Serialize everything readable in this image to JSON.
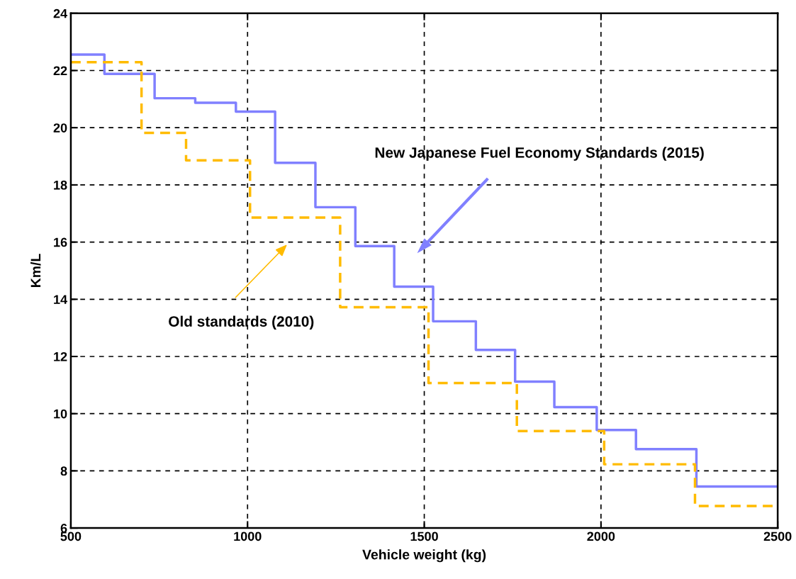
{
  "chart_data": {
    "type": "step",
    "xlabel": "Vehicle weight (kg)",
    "ylabel": "Km/L",
    "series": [
      {
        "color": "#8080ff",
        "line_style": "solid",
        "x": [
          500,
          595,
          737,
          852,
          967,
          1078,
          1192,
          1305,
          1415,
          1525,
          1646,
          1757,
          1868,
          1988,
          2099,
          2270,
          2500
        ],
        "values": [
          22.56,
          21.88,
          21.03,
          20.87,
          20.56,
          18.77,
          17.22,
          15.86,
          14.44,
          13.23,
          12.23,
          11.12,
          10.23,
          9.43,
          8.76,
          7.45,
          7.45
        ]
      },
      {
        "color": "#ffbb00",
        "line_style": "dashed",
        "x": [
          500,
          700,
          826,
          1007,
          1262,
          1512,
          1762,
          2009,
          2266,
          2500
        ],
        "values": [
          22.29,
          19.82,
          18.86,
          16.86,
          13.72,
          11.07,
          9.39,
          8.23,
          6.77,
          6.77
        ]
      }
    ],
    "annotations": [
      "New Japanese Fuel Economy Standards (2015)",
      "Old standards (2010)"
    ],
    "xlim": [
      500,
      2500
    ],
    "xticks": [
      500,
      1000,
      1500,
      2000,
      2500
    ],
    "ylim": [
      6,
      24
    ],
    "yticks": [
      6,
      8,
      10,
      12,
      14,
      16,
      18,
      20,
      22,
      24
    ],
    "grid": true,
    "legend": false
  }
}
